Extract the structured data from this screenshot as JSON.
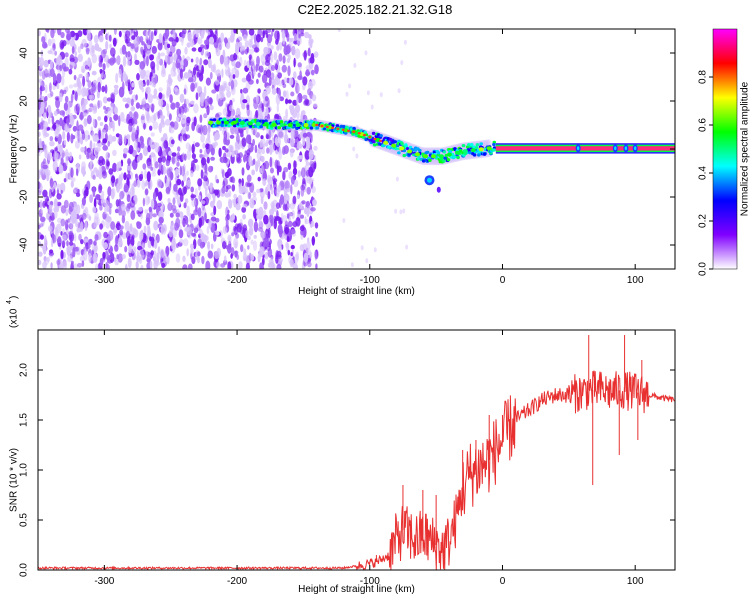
{
  "title": "C2E2.2025.182.21.32.G18",
  "chart_data": [
    {
      "type": "heatmap",
      "xlabel": "Height of straight line (km)",
      "ylabel": "Frequency (Hz)",
      "xlim": [
        -350,
        130
      ],
      "ylim": [
        -50,
        50
      ],
      "xticks": [
        -300,
        -200,
        -100,
        0,
        100
      ],
      "yticks": [
        -40,
        -20,
        0,
        20,
        40
      ],
      "colorbar": {
        "label": "Normalized spectral amplitude",
        "range": [
          0,
          1
        ],
        "ticks": [
          0.0,
          0.2,
          0.4,
          0.6,
          0.8
        ],
        "tick_labels": [
          "0.0",
          "0.2",
          "0.4",
          "0.6",
          "0.8"
        ],
        "colormap": [
          "#ffffff",
          "#8000ff",
          "#0000ff",
          "#00ffff",
          "#00ff00",
          "#ffff00",
          "#ff0000",
          "#ff00ff"
        ]
      },
      "noise_region_x": [
        -350,
        -140
      ],
      "ridge": [
        {
          "x": -220,
          "y": 11
        },
        {
          "x": -200,
          "y": 11
        },
        {
          "x": -170,
          "y": 10
        },
        {
          "x": -140,
          "y": 10
        },
        {
          "x": -110,
          "y": 7
        },
        {
          "x": -90,
          "y": 3
        },
        {
          "x": -75,
          "y": 0
        },
        {
          "x": -60,
          "y": -3
        },
        {
          "x": -45,
          "y": -3
        },
        {
          "x": -30,
          "y": -1
        },
        {
          "x": -15,
          "y": 0
        },
        {
          "x": 0,
          "y": 1
        },
        {
          "x": 130,
          "y": 0
        }
      ],
      "secondary_blob": {
        "x": -55,
        "y": -13
      }
    },
    {
      "type": "line",
      "xlabel": "Height of straight line (km)",
      "ylabel": "SNR (10 * v/v)",
      "yscale_label": "(x10",
      "yscale_exp": "4",
      "xlim": [
        -350,
        130
      ],
      "ylim": [
        0,
        2.4
      ],
      "xticks": [
        -300,
        -200,
        -100,
        0,
        100
      ],
      "yticks": [
        0.0,
        0.5,
        1.0,
        1.5,
        2.0
      ],
      "ytick_labels": [
        "0.0",
        "0.5",
        "1.0",
        "1.5",
        "2.0"
      ],
      "color": "#e83030",
      "series": [
        {
          "x": [
            -350,
            -300,
            -250,
            -200,
            -150,
            -120,
            -105,
            -95,
            -85,
            -80,
            -75,
            -70,
            -65,
            -60,
            -55,
            -50,
            -45,
            -40,
            -35,
            -30,
            -25,
            -20,
            -15,
            -10,
            -5,
            0,
            5,
            10,
            15,
            20,
            25,
            30,
            40,
            50,
            60,
            65,
            70,
            75,
            80,
            90,
            100,
            110,
            120,
            130
          ],
          "y": [
            0.02,
            0.02,
            0.02,
            0.02,
            0.02,
            0.02,
            0.05,
            0.08,
            0.15,
            0.3,
            0.4,
            0.35,
            0.3,
            0.35,
            0.3,
            0.25,
            0.2,
            0.3,
            0.5,
            0.8,
            0.95,
            1.0,
            1.05,
            1.1,
            1.2,
            1.3,
            1.4,
            1.5,
            1.55,
            1.6,
            1.65,
            1.7,
            1.75,
            1.75,
            1.78,
            1.8,
            1.8,
            1.8,
            1.78,
            1.8,
            1.78,
            1.75,
            1.72,
            1.7
          ]
        }
      ],
      "spikes": [
        {
          "x": -95,
          "y": 0.15
        },
        {
          "x": -75,
          "y": 0.85
        },
        {
          "x": -60,
          "y": 0.8
        },
        {
          "x": -50,
          "y": 0.75
        },
        {
          "x": -30,
          "y": 1.2
        },
        {
          "x": -20,
          "y": 1.3
        },
        {
          "x": -10,
          "y": 1.55
        },
        {
          "x": 0,
          "y": 1.55
        },
        {
          "x": 65,
          "y": 2.35
        },
        {
          "x": 68,
          "y": 0.85
        },
        {
          "x": 92,
          "y": 2.35
        },
        {
          "x": 88,
          "y": 1.15
        },
        {
          "x": 105,
          "y": 2.1
        },
        {
          "x": 102,
          "y": 1.3
        }
      ]
    }
  ]
}
